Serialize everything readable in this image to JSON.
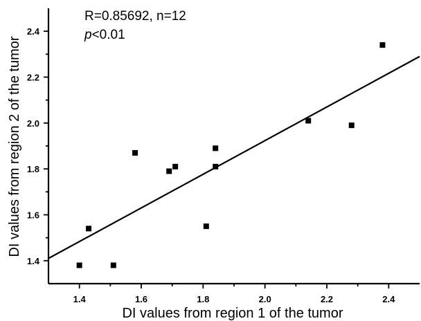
{
  "chart_data": {
    "type": "scatter",
    "title": "",
    "xlabel": "DI values from region 1 of the tumor",
    "ylabel": "DI values from region 2 of the tumor",
    "xlim": [
      1.3,
      2.5
    ],
    "ylim": [
      1.3,
      2.5
    ],
    "x_ticks": [
      "1.4",
      "1.6",
      "1.8",
      "2.0",
      "2.2",
      "2.4"
    ],
    "y_ticks": [
      "1.4",
      "1.6",
      "1.8",
      "2.0",
      "2.2",
      "2.4"
    ],
    "grid": false,
    "annotation_line1": "R=0.85692, n=12",
    "annotation_p_italic": "p",
    "annotation_p_rest": "<0.01",
    "series": [
      {
        "marker": "square",
        "color": "#000000",
        "points": [
          {
            "x": 1.4,
            "y": 1.38
          },
          {
            "x": 1.43,
            "y": 1.54
          },
          {
            "x": 1.51,
            "y": 1.38
          },
          {
            "x": 1.58,
            "y": 1.87
          },
          {
            "x": 1.69,
            "y": 1.79
          },
          {
            "x": 1.71,
            "y": 1.81
          },
          {
            "x": 1.81,
            "y": 1.55
          },
          {
            "x": 1.84,
            "y": 1.89
          },
          {
            "x": 1.84,
            "y": 1.81
          },
          {
            "x": 2.14,
            "y": 2.01
          },
          {
            "x": 2.28,
            "y": 1.99
          },
          {
            "x": 2.38,
            "y": 2.34
          }
        ]
      }
    ],
    "fit_line": {
      "x": [
        1.3,
        2.5
      ],
      "y": [
        1.41,
        2.29
      ],
      "color": "#000000"
    }
  }
}
